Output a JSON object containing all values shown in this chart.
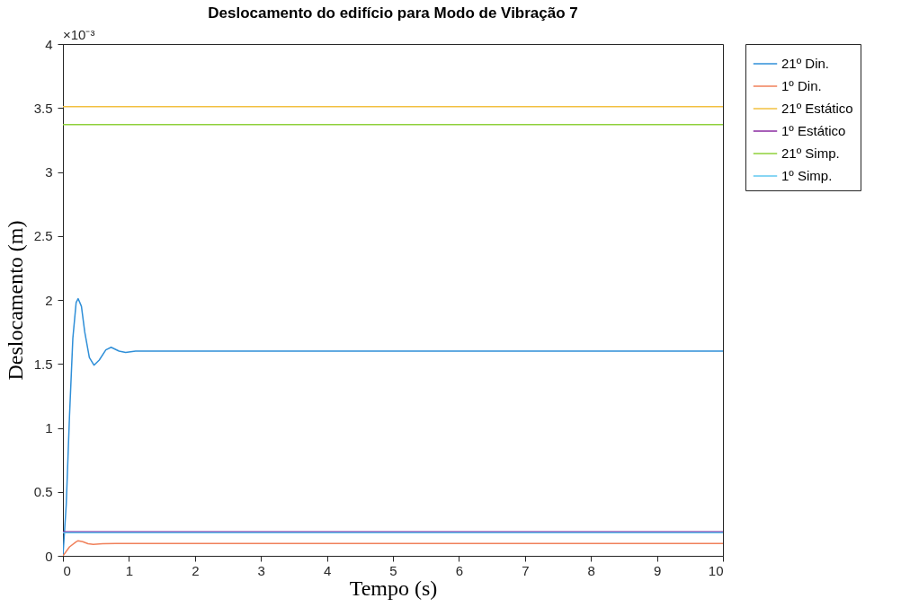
{
  "chart_data": {
    "type": "line",
    "title": "Deslocamento do edifício para Modo de Vibração 7",
    "xlabel": "Tempo (s)",
    "ylabel": "Deslocamento (m)",
    "xlim": [
      0,
      10
    ],
    "ylim": [
      0,
      4
    ],
    "xticks": [
      0,
      1,
      2,
      3,
      4,
      5,
      6,
      7,
      8,
      9,
      10
    ],
    "yticks": [
      0,
      0.5,
      1,
      1.5,
      2,
      2.5,
      3,
      3.5,
      4
    ],
    "grid": false,
    "legend": "right",
    "annotations": [
      "×10⁻³"
    ],
    "series": [
      {
        "name": "21º Din.",
        "color": "#2f8fd8",
        "x": [
          0,
          0.05,
          0.1,
          0.15,
          0.2,
          0.23,
          0.28,
          0.33,
          0.4,
          0.47,
          0.55,
          0.65,
          0.73,
          0.85,
          0.95,
          1.1,
          10
        ],
        "values": [
          0,
          0.4,
          1.1,
          1.7,
          1.98,
          2.01,
          1.95,
          1.75,
          1.55,
          1.49,
          1.53,
          1.61,
          1.63,
          1.6,
          1.59,
          1.6,
          1.6
        ]
      },
      {
        "name": "1º Din.",
        "color": "#f0805a",
        "x": [
          0,
          0.1,
          0.2,
          0.23,
          0.3,
          0.38,
          0.46,
          0.6,
          0.8,
          1,
          10
        ],
        "values": [
          0,
          0.07,
          0.11,
          0.118,
          0.11,
          0.095,
          0.089,
          0.094,
          0.096,
          0.096,
          0.096
        ]
      },
      {
        "name": "21º Estático",
        "color": "#f2c040",
        "x": [
          0,
          10
        ],
        "values": [
          3.51,
          3.51
        ]
      },
      {
        "name": "1º Estático",
        "color": "#8a2aa0",
        "x": [
          0,
          10
        ],
        "values": [
          0.187,
          0.187
        ]
      },
      {
        "name": "21º Simp.",
        "color": "#8fd03a",
        "x": [
          0,
          10
        ],
        "values": [
          3.37,
          3.37
        ]
      },
      {
        "name": "1º Simp.",
        "color": "#60c8f0",
        "x": [
          0,
          10
        ],
        "values": [
          0.18,
          0.18
        ]
      }
    ]
  }
}
